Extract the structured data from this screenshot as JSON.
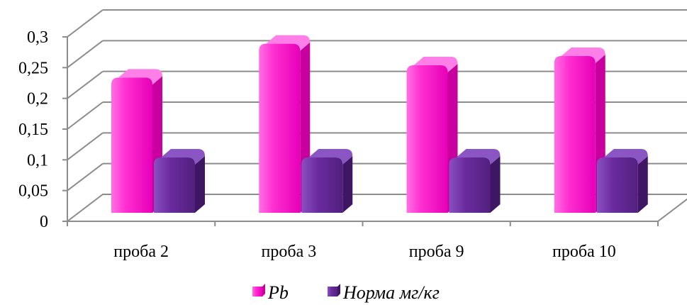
{
  "chart_data": {
    "type": "bar",
    "categories": [
      "проба 2",
      "проба 3",
      "проба 9",
      "проба 10"
    ],
    "series": [
      {
        "name": "Pb",
        "values": [
          0.22,
          0.275,
          0.24,
          0.255
        ],
        "color": "#ff2fd0"
      },
      {
        "name": "Норма мг/кг",
        "values": [
          0.09,
          0.09,
          0.09,
          0.09
        ],
        "color": "#6a2b9e"
      }
    ],
    "yticks": [
      "0",
      "0,05",
      "0,1",
      "0,15",
      "0,2",
      "0,25",
      "0,3"
    ],
    "ylim": [
      0,
      0.3
    ],
    "grid": true,
    "legend_position": "bottom",
    "projection": "3d"
  }
}
